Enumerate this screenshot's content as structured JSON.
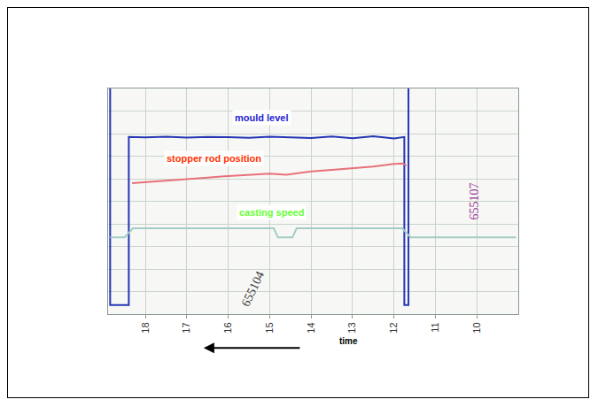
{
  "chart_data": {
    "type": "line",
    "x_label": "time",
    "xlim": [
      18.9,
      9.0
    ],
    "xticks": [
      18,
      17,
      16,
      15,
      14,
      13,
      12,
      11,
      10
    ],
    "ylim": [
      0,
      100
    ],
    "yticks": [
      0,
      10,
      20,
      30,
      40,
      50,
      60,
      70,
      80,
      90,
      100
    ],
    "grid": true,
    "tick_labels": "x",
    "series": [
      {
        "color": "#2436b4",
        "x": [
          18.85,
          18.85,
          18.4,
          18.4,
          18.0,
          17.5,
          17.0,
          16.5,
          16.0,
          15.5,
          15.0,
          14.5,
          14.0,
          13.5,
          13.0,
          12.5,
          12.0,
          11.75,
          11.75,
          11.65,
          11.65
        ],
        "values": [
          100,
          4,
          4,
          78.5,
          78.3,
          78.6,
          78.2,
          78.5,
          78.4,
          78.1,
          78.6,
          78.3,
          78.0,
          78.7,
          77.9,
          78.8,
          77.8,
          78.5,
          4,
          4,
          100
        ]
      },
      {
        "color": "#e8707a",
        "x": [
          18.32,
          17.5,
          17.0,
          16.5,
          16.0,
          15.5,
          15.0,
          14.6,
          14.3,
          14.0,
          13.5,
          13.0,
          12.5,
          12.0,
          11.8,
          11.7
        ],
        "values": [
          58,
          59,
          59.7,
          60.5,
          61.2,
          61.8,
          62.3,
          61.8,
          62.6,
          63.2,
          63.9,
          64.6,
          65.4,
          66.6,
          66.8,
          65.8
        ]
      },
      {
        "color": "#a4ccc4",
        "x": [
          18.85,
          18.5,
          18.3,
          14.9,
          14.8,
          14.45,
          14.35,
          11.8,
          11.6,
          11.1,
          9.05
        ],
        "values": [
          34,
          34,
          38,
          38,
          34,
          34,
          38,
          38,
          34,
          34,
          34
        ]
      }
    ],
    "annotations": [
      {
        "text": "mould level",
        "x": 15.2,
        "y": 87,
        "color": "#1f1fd0"
      },
      {
        "text": "stopper rod position",
        "x": 16.35,
        "y": 69,
        "color": "#ff3300"
      },
      {
        "text": "casting speed",
        "x": 14.96,
        "y": 45,
        "color": "#66ff33"
      }
    ],
    "handwritten": [
      {
        "text": "655107",
        "x": 10.05,
        "y": 50,
        "color": "#9a3a9a"
      },
      {
        "text": "655104",
        "x": 15.4,
        "y": 11,
        "color": "#333333"
      }
    ]
  }
}
